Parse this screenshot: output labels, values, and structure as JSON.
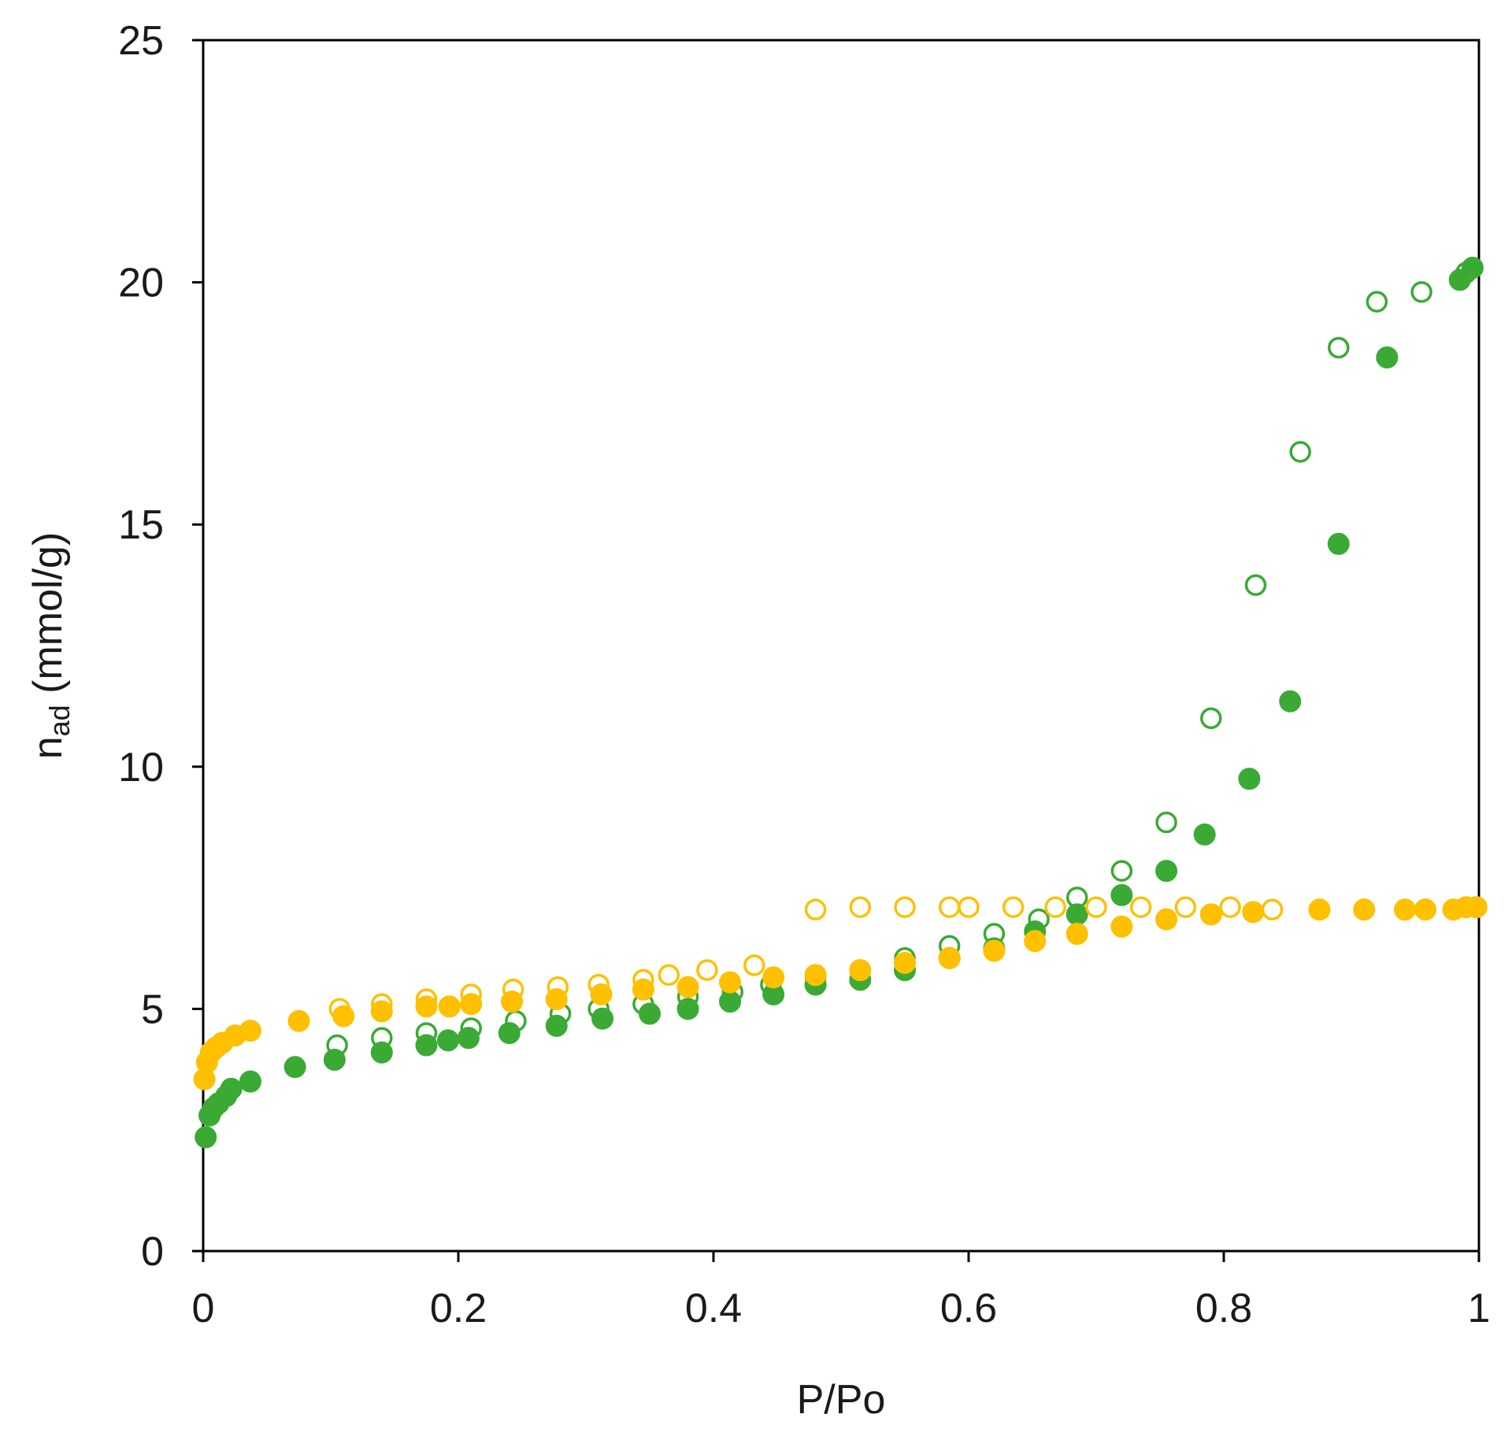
{
  "chart_data": {
    "type": "scatter",
    "xlabel": "P/Po",
    "ylabel": {
      "symbol": "n",
      "subscript": "ad",
      "unit": " (mmol/g)"
    },
    "xlim": [
      0,
      1
    ],
    "ylim": [
      0,
      25
    ],
    "xticks": [
      0,
      0.2,
      0.4,
      0.6,
      0.8,
      1
    ],
    "xtick_labels": [
      "0",
      "0.2",
      "0.4",
      "0.6",
      "0.8",
      "1"
    ],
    "yticks": [
      0,
      5,
      10,
      15,
      20,
      25
    ],
    "ytick_labels": [
      "0",
      "5",
      "10",
      "15",
      "20",
      "25"
    ],
    "grid": false,
    "legend": "none",
    "series": [
      {
        "color": "#3aaa35",
        "marker": "open-circle",
        "points": [
          [
            0.105,
            4.25
          ],
          [
            0.14,
            4.4
          ],
          [
            0.175,
            4.5
          ],
          [
            0.21,
            4.6
          ],
          [
            0.245,
            4.75
          ],
          [
            0.28,
            4.9
          ],
          [
            0.31,
            5.0
          ],
          [
            0.345,
            5.1
          ],
          [
            0.38,
            5.25
          ],
          [
            0.415,
            5.35
          ],
          [
            0.445,
            5.5
          ],
          [
            0.48,
            5.65
          ],
          [
            0.515,
            5.8
          ],
          [
            0.55,
            6.05
          ],
          [
            0.585,
            6.3
          ],
          [
            0.62,
            6.55
          ],
          [
            0.655,
            6.85
          ],
          [
            0.685,
            7.3
          ],
          [
            0.72,
            7.85
          ],
          [
            0.755,
            8.85
          ],
          [
            0.79,
            11.0
          ],
          [
            0.825,
            13.75
          ],
          [
            0.86,
            16.5
          ],
          [
            0.89,
            18.65
          ],
          [
            0.92,
            19.6
          ],
          [
            0.955,
            19.8
          ],
          [
            0.99,
            20.2
          ]
        ]
      },
      {
        "color": "#3aaa35",
        "marker": "filled-circle",
        "points": [
          [
            0.002,
            2.35
          ],
          [
            0.005,
            2.8
          ],
          [
            0.008,
            2.95
          ],
          [
            0.012,
            3.05
          ],
          [
            0.018,
            3.2
          ],
          [
            0.022,
            3.35
          ],
          [
            0.037,
            3.5
          ],
          [
            0.072,
            3.8
          ],
          [
            0.103,
            3.95
          ],
          [
            0.14,
            4.1
          ],
          [
            0.175,
            4.25
          ],
          [
            0.192,
            4.35
          ],
          [
            0.208,
            4.4
          ],
          [
            0.24,
            4.5
          ],
          [
            0.277,
            4.65
          ],
          [
            0.313,
            4.8
          ],
          [
            0.35,
            4.9
          ],
          [
            0.38,
            5.0
          ],
          [
            0.413,
            5.15
          ],
          [
            0.447,
            5.3
          ],
          [
            0.48,
            5.5
          ],
          [
            0.515,
            5.6
          ],
          [
            0.55,
            5.8
          ],
          [
            0.585,
            6.05
          ],
          [
            0.62,
            6.25
          ],
          [
            0.652,
            6.6
          ],
          [
            0.685,
            6.95
          ],
          [
            0.72,
            7.35
          ],
          [
            0.755,
            7.85
          ],
          [
            0.785,
            8.6
          ],
          [
            0.82,
            9.75
          ],
          [
            0.852,
            11.35
          ],
          [
            0.89,
            14.6
          ],
          [
            0.928,
            18.45
          ],
          [
            0.985,
            20.05
          ],
          [
            0.995,
            20.3
          ]
        ]
      },
      {
        "color": "#ffc000",
        "marker": "open-circle",
        "points": [
          [
            0.107,
            5.0
          ],
          [
            0.14,
            5.1
          ],
          [
            0.175,
            5.2
          ],
          [
            0.21,
            5.3
          ],
          [
            0.243,
            5.4
          ],
          [
            0.278,
            5.45
          ],
          [
            0.31,
            5.5
          ],
          [
            0.345,
            5.6
          ],
          [
            0.365,
            5.7
          ],
          [
            0.395,
            5.8
          ],
          [
            0.432,
            5.9
          ],
          [
            0.48,
            7.05
          ],
          [
            0.515,
            7.1
          ],
          [
            0.55,
            7.1
          ],
          [
            0.585,
            7.1
          ],
          [
            0.6,
            7.1
          ],
          [
            0.635,
            7.1
          ],
          [
            0.668,
            7.1
          ],
          [
            0.7,
            7.1
          ],
          [
            0.735,
            7.1
          ],
          [
            0.77,
            7.1
          ],
          [
            0.805,
            7.1
          ],
          [
            0.838,
            7.05
          ]
        ]
      },
      {
        "color": "#ffc000",
        "marker": "filled-circle",
        "points": [
          [
            0.001,
            3.55
          ],
          [
            0.003,
            3.9
          ],
          [
            0.006,
            4.1
          ],
          [
            0.01,
            4.2
          ],
          [
            0.015,
            4.3
          ],
          [
            0.025,
            4.45
          ],
          [
            0.037,
            4.55
          ],
          [
            0.075,
            4.75
          ],
          [
            0.11,
            4.85
          ],
          [
            0.14,
            4.95
          ],
          [
            0.175,
            5.05
          ],
          [
            0.193,
            5.05
          ],
          [
            0.21,
            5.1
          ],
          [
            0.242,
            5.15
          ],
          [
            0.277,
            5.2
          ],
          [
            0.312,
            5.3
          ],
          [
            0.345,
            5.4
          ],
          [
            0.38,
            5.45
          ],
          [
            0.413,
            5.55
          ],
          [
            0.447,
            5.65
          ],
          [
            0.48,
            5.7
          ],
          [
            0.515,
            5.8
          ],
          [
            0.55,
            5.95
          ],
          [
            0.585,
            6.05
          ],
          [
            0.62,
            6.2
          ],
          [
            0.652,
            6.4
          ],
          [
            0.685,
            6.55
          ],
          [
            0.72,
            6.7
          ],
          [
            0.755,
            6.85
          ],
          [
            0.79,
            6.95
          ],
          [
            0.823,
            7.0
          ],
          [
            0.875,
            7.05
          ],
          [
            0.91,
            7.05
          ],
          [
            0.942,
            7.05
          ],
          [
            0.958,
            7.05
          ],
          [
            0.98,
            7.05
          ],
          [
            0.99,
            7.1
          ],
          [
            0.998,
            7.1
          ]
        ]
      }
    ]
  }
}
